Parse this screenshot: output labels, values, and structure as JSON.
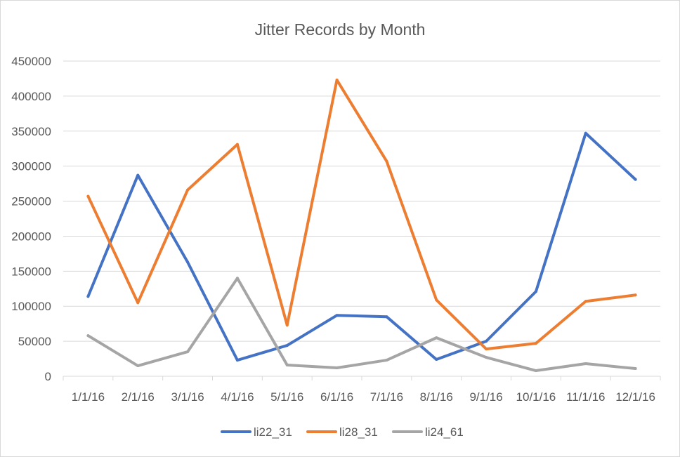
{
  "chart_data": {
    "type": "line",
    "title": "Jitter Records by Month",
    "xlabel": "",
    "ylabel": "",
    "categories": [
      "1/1/16",
      "2/1/16",
      "3/1/16",
      "4/1/16",
      "5/1/16",
      "6/1/16",
      "7/1/16",
      "8/1/16",
      "9/1/16",
      "10/1/16",
      "11/1/16",
      "12/1/16"
    ],
    "ylim": [
      0,
      450000
    ],
    "yticks": [
      "0",
      "50000",
      "100000",
      "150000",
      "200000",
      "250000",
      "300000",
      "350000",
      "400000",
      "450000"
    ],
    "grid": true,
    "legend_position": "bottom",
    "series": [
      {
        "name": "li22_31",
        "color": "#4472c4",
        "values": [
          114000,
          287000,
          163000,
          23000,
          44000,
          87000,
          85000,
          24000,
          50000,
          121000,
          347000,
          281000
        ]
      },
      {
        "name": "li28_31",
        "color": "#ed7d31",
        "values": [
          257000,
          105000,
          266000,
          331000,
          73000,
          423000,
          307000,
          109000,
          39000,
          47000,
          107000,
          116000
        ]
      },
      {
        "name": "li24_61",
        "color": "#a5a5a5",
        "values": [
          58000,
          15000,
          35000,
          140000,
          16000,
          12000,
          23000,
          55000,
          27000,
          8000,
          18000,
          11000
        ]
      }
    ]
  }
}
